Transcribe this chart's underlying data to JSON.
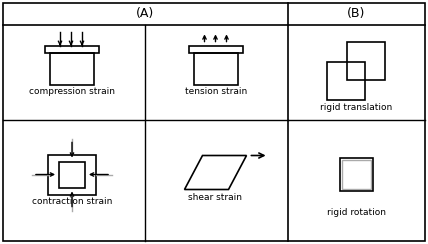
{
  "bg_color": "#ffffff",
  "line_color": "#000000",
  "gray_color": "#aaaaaa",
  "title_A": "(A)",
  "title_B": "(B)",
  "label_compression": "compression strain",
  "label_tension": "tension strain",
  "label_contraction": "contraction strain",
  "label_shear": "shear strain",
  "label_translation": "rigid translation",
  "label_rotation": "rigid rotation",
  "font_size": 6.5,
  "title_font_size": 9,
  "fig_width": 4.28,
  "fig_height": 2.44,
  "dpi": 100
}
